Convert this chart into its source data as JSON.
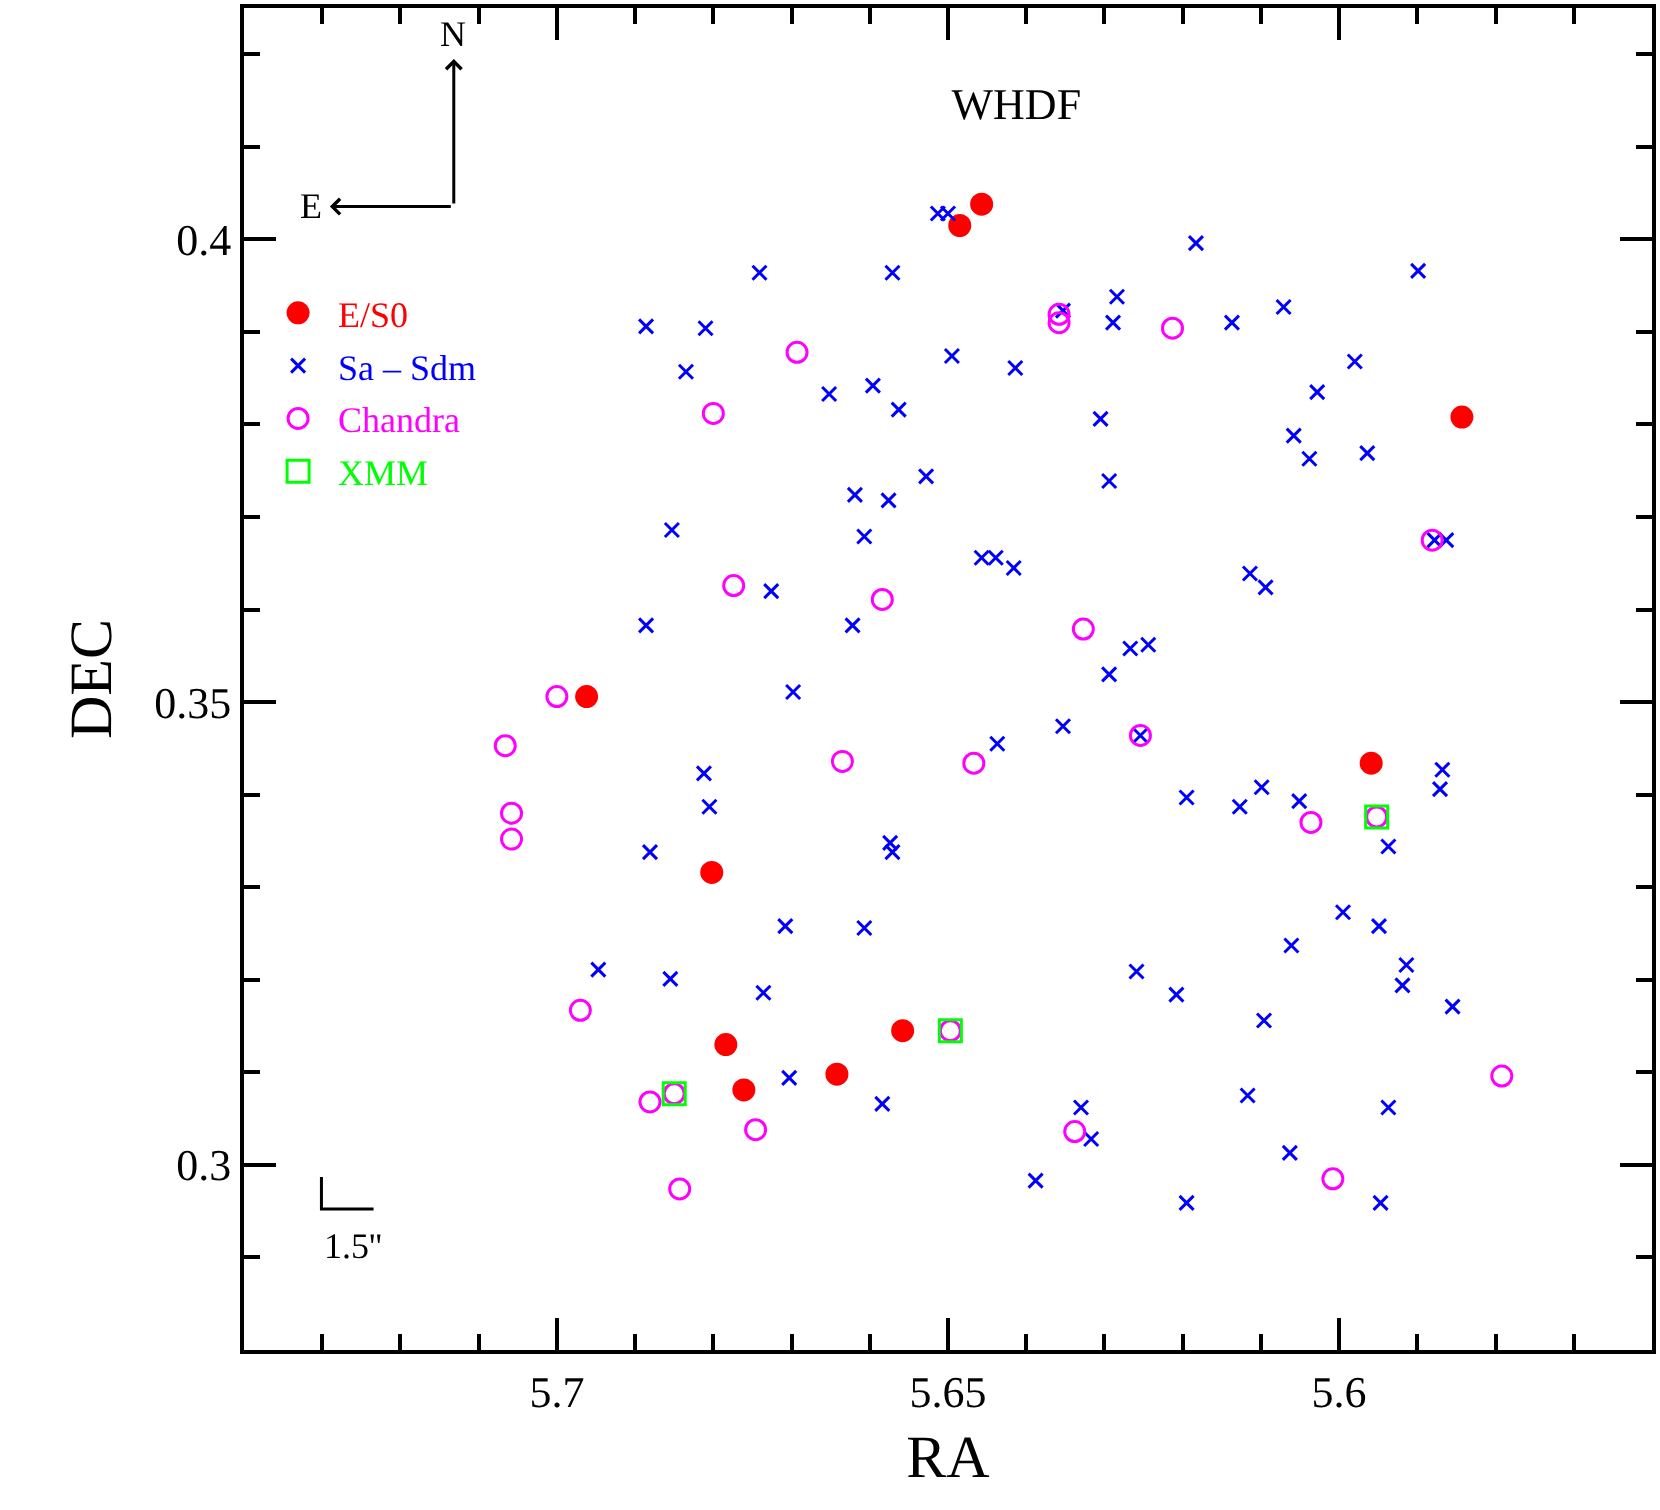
{
  "chart_data": {
    "type": "scatter",
    "title": "WHDF",
    "xlabel": "RA",
    "ylabel": "DEC",
    "xlim": [
      5.74,
      5.56
    ],
    "ylim": [
      0.28,
      0.425
    ],
    "xticks": [
      {
        "value": 5.73,
        "label": null
      },
      {
        "value": 5.72,
        "label": null
      },
      {
        "value": 5.71,
        "label": null
      },
      5.7,
      {
        "value": 5.69,
        "label": null
      },
      {
        "value": 5.68,
        "label": null
      },
      {
        "value": 5.67,
        "label": null
      },
      {
        "value": 5.66,
        "label": null
      },
      5.65,
      {
        "value": 5.64,
        "label": null
      },
      {
        "value": 5.63,
        "label": null
      },
      {
        "value": 5.62,
        "label": null
      },
      {
        "value": 5.61,
        "label": null
      },
      5.6,
      {
        "value": 5.59,
        "label": null
      },
      {
        "value": 5.58,
        "label": null
      },
      {
        "value": 5.57,
        "label": null
      }
    ],
    "yticks": [
      {
        "value": 0.29,
        "label": null
      },
      0.3,
      {
        "value": 0.31,
        "label": null
      },
      {
        "value": 0.32,
        "label": null
      },
      {
        "value": 0.33,
        "label": null
      },
      {
        "value": 0.34,
        "label": null
      },
      0.35,
      {
        "value": 0.36,
        "label": null
      },
      {
        "value": 0.37,
        "label": null
      },
      {
        "value": 0.38,
        "label": null
      },
      {
        "value": 0.39,
        "label": null
      },
      0.4,
      {
        "value": 0.41,
        "label": null
      },
      {
        "value": 0.42,
        "label": null
      }
    ],
    "legend": "top left",
    "annotations": [
      "N",
      "E",
      "1.5''"
    ],
    "series": [
      {
        "name": "E/S0",
        "color": "#ff0000",
        "marker": "circle",
        "x": [
          5.6485,
          5.6457,
          5.5843,
          5.6962,
          5.6802,
          5.6784,
          5.6761,
          5.6642,
          5.6558,
          5.5959
        ],
        "values": [
          0.4015,
          0.4038,
          0.3808,
          0.3506,
          0.3316,
          0.313,
          0.3081,
          0.3098,
          0.3145,
          0.3434
        ]
      },
      {
        "name": "Sa – Sdm",
        "color": "#0000ff",
        "marker": "cross",
        "x": [
          5.6886,
          5.681,
          5.6835,
          5.6853,
          5.6886,
          5.6513,
          5.65,
          5.6741,
          5.6571,
          5.6183,
          5.6284,
          5.6289,
          5.6353,
          5.6495,
          5.6414,
          5.6652,
          5.6596,
          5.6563,
          5.6305,
          5.6528,
          5.6619,
          5.6576,
          5.6294,
          5.6607,
          5.6457,
          5.6439,
          5.6416,
          5.6726,
          5.6622,
          5.6267,
          5.6244,
          5.6294,
          5.5899,
          5.6071,
          5.6137,
          5.598,
          5.6028,
          5.6058,
          5.6038,
          5.5964,
          5.5878,
          5.5863,
          5.6114,
          5.6094,
          5.6812,
          5.6805,
          5.6881,
          5.6947,
          5.6855,
          5.6698,
          5.6353,
          5.6437,
          5.6254,
          5.6195,
          5.6574,
          5.6571,
          5.6708,
          5.6607,
          5.6736,
          5.6259,
          5.6208,
          5.6703,
          5.6584,
          5.633,
          5.6317,
          5.6388,
          5.6195,
          5.5868,
          5.5871,
          5.6099,
          5.6127,
          5.6051,
          5.5937,
          5.5995,
          5.5949,
          5.6061,
          5.5914,
          5.5919,
          5.5855,
          5.6096,
          5.6117,
          5.5937,
          5.6063,
          5.5947
        ],
        "values": [
          0.3906,
          0.3904,
          0.3857,
          0.3686,
          0.3583,
          0.4028,
          0.4028,
          0.3964,
          0.3964,
          0.3996,
          0.3938,
          0.391,
          0.3923,
          0.3874,
          0.3861,
          0.3833,
          0.3842,
          0.3816,
          0.3806,
          0.3744,
          0.3724,
          0.3718,
          0.3739,
          0.3679,
          0.3656,
          0.3656,
          0.3645,
          0.362,
          0.3583,
          0.3558,
          0.3562,
          0.353,
          0.3966,
          0.3927,
          0.391,
          0.3868,
          0.3835,
          0.3788,
          0.3763,
          0.3769,
          0.3675,
          0.3675,
          0.3639,
          0.3624,
          0.3423,
          0.3387,
          0.3338,
          0.3211,
          0.3201,
          0.3511,
          0.3474,
          0.3455,
          0.3464,
          0.3397,
          0.3348,
          0.3338,
          0.3258,
          0.3256,
          0.3186,
          0.3209,
          0.3184,
          0.3094,
          0.3066,
          0.3062,
          0.3028,
          0.2983,
          0.2959,
          0.3427,
          0.3406,
          0.3408,
          0.3387,
          0.3393,
          0.3344,
          0.3273,
          0.3258,
          0.3237,
          0.3216,
          0.3194,
          0.3171,
          0.3156,
          0.3075,
          0.3062,
          0.3013,
          0.2959
        ]
      },
      {
        "name": "Chandra",
        "color": "#ff00ff",
        "marker": "circle",
        "x": [
          5.68,
          5.6358,
          5.6358,
          5.6693,
          5.6213,
          5.6774,
          5.6584,
          5.6327,
          5.5881,
          5.7,
          5.7066,
          5.7058,
          5.7058,
          5.697,
          5.6881,
          5.685,
          5.6843,
          5.6254,
          5.6635,
          5.6467,
          5.6497,
          5.6746,
          5.6338,
          5.6036,
          5.5952,
          5.5792,
          5.6008
        ],
        "values": [
          0.3812,
          0.391,
          0.3919,
          0.3878,
          0.3904,
          0.3626,
          0.3611,
          0.3579,
          0.3675,
          0.3506,
          0.3453,
          0.338,
          0.3352,
          0.3167,
          0.3068,
          0.3077,
          0.2974,
          0.3464,
          0.3436,
          0.3434,
          0.3145,
          0.3038,
          0.3036,
          0.337,
          0.3376,
          0.3096,
          0.2985
        ]
      },
      {
        "name": "XMM",
        "color": "#00ff00",
        "marker": "square",
        "x": [
          5.685,
          5.6497,
          5.5952
        ],
        "values": [
          0.3077,
          0.3145,
          0.3376
        ]
      }
    ]
  }
}
